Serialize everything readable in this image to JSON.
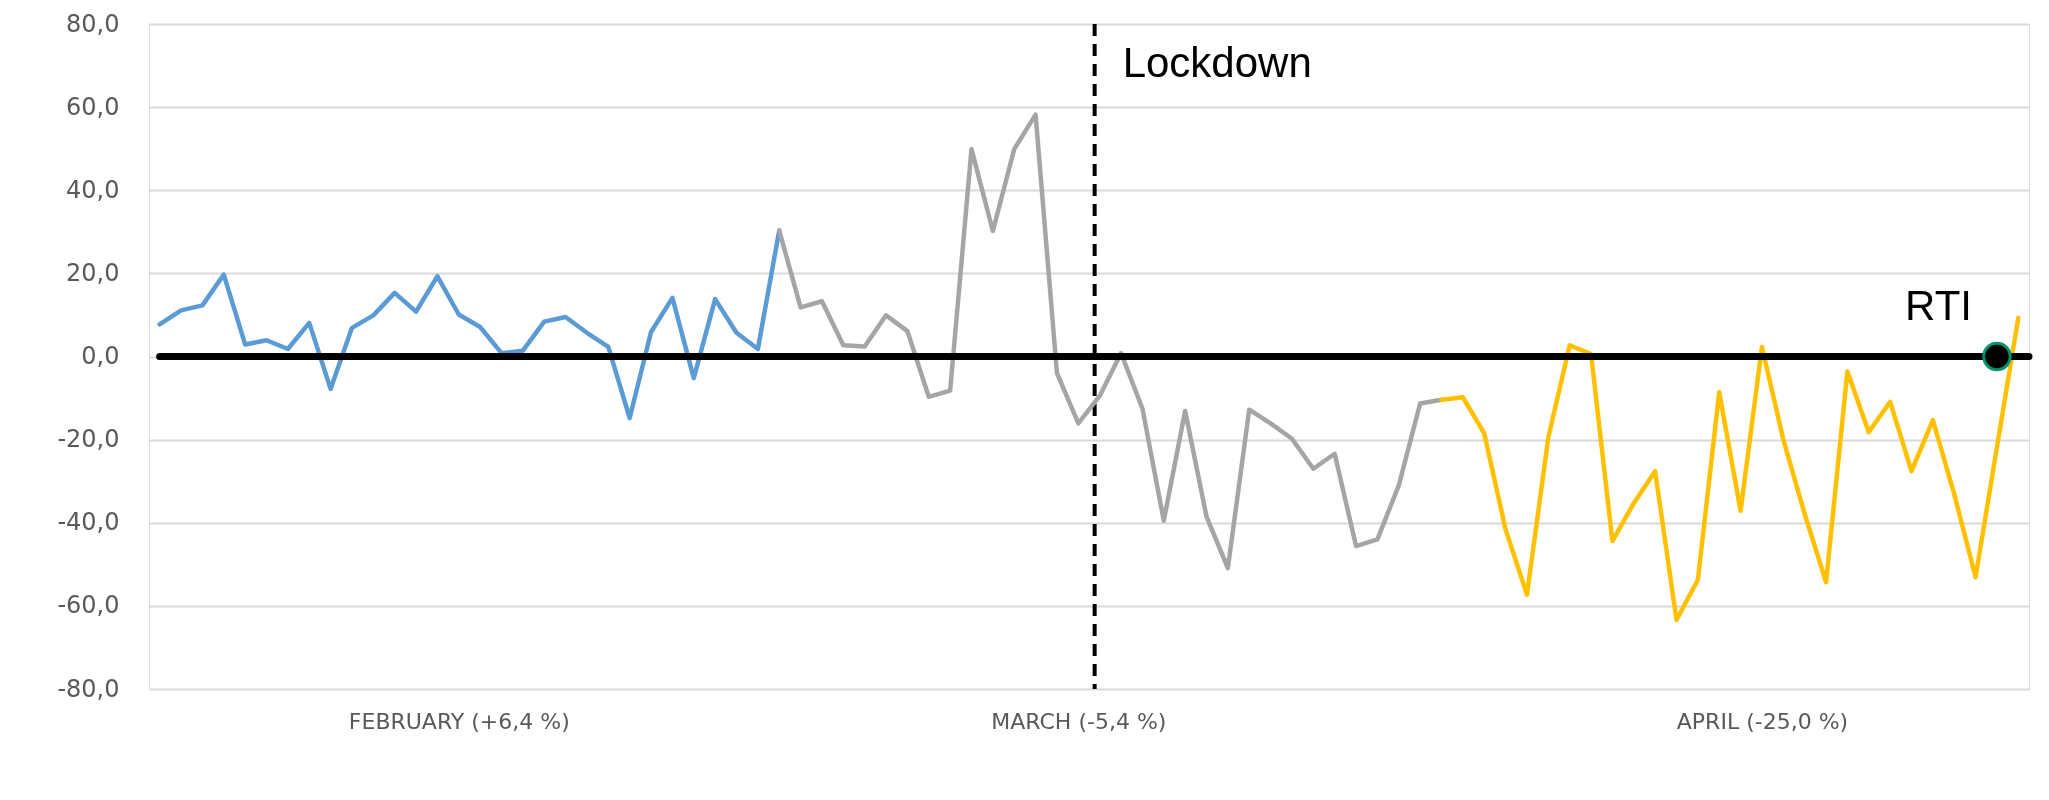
{
  "chart_data": {
    "type": "line",
    "categories": [
      null,
      null,
      null,
      null,
      null,
      null,
      null,
      null,
      null,
      null,
      null,
      null,
      null,
      null,
      "FEBRUARY (+6,4 %)",
      null,
      null,
      null,
      null,
      null,
      null,
      null,
      null,
      null,
      null,
      null,
      null,
      null,
      null,
      null,
      null,
      null,
      null,
      null,
      null,
      null,
      null,
      null,
      null,
      null,
      null,
      null,
      null,
      "MARCH (-5,4 %)",
      null,
      null,
      null,
      null,
      null,
      null,
      null,
      null,
      null,
      null,
      null,
      null,
      null,
      null,
      null,
      null,
      null,
      null,
      null,
      null,
      null,
      null,
      null,
      null,
      null,
      null,
      null,
      null,
      null,
      null,
      null,
      "APRIL (-25,0 %)",
      null,
      null,
      null,
      null,
      null,
      null,
      null,
      null,
      null,
      null,
      null,
      null
    ],
    "series": [
      {
        "color": "#5b9bd5",
        "values": [
          7.7,
          11.1,
          12.3,
          19.7,
          2.9,
          3.9,
          1.8,
          8.1,
          -7.8,
          6.9,
          9.9,
          15.3,
          10.8,
          19.3,
          10.1,
          7.1,
          0.8,
          1.4,
          8.4,
          9.5,
          5.7,
          2.3,
          -14.8,
          5.9,
          14.1,
          -5.2,
          13.8,
          5.7,
          1.8,
          30.3,
          null,
          null,
          null,
          null,
          null,
          null,
          null,
          null,
          null,
          null,
          null,
          null,
          null,
          null,
          null,
          null,
          null,
          null,
          null,
          null,
          null,
          null,
          null,
          null,
          null,
          null,
          null,
          null,
          null,
          null,
          null,
          null,
          null,
          null,
          null,
          null,
          null,
          null,
          null,
          null,
          null,
          null,
          null,
          null,
          null,
          null,
          null,
          null,
          null,
          null,
          null,
          null,
          null,
          null,
          null,
          null,
          null,
          null
        ]
      },
      {
        "color": "#a5a5a5",
        "values": [
          null,
          null,
          null,
          null,
          null,
          null,
          null,
          null,
          null,
          null,
          null,
          null,
          null,
          null,
          null,
          null,
          null,
          null,
          null,
          null,
          null,
          null,
          null,
          null,
          null,
          null,
          null,
          null,
          null,
          30.3,
          11.8,
          13.3,
          2.7,
          2.4,
          9.9,
          6.1,
          -9.7,
          -8.2,
          49.9,
          30.2,
          49.9,
          58.2,
          -4.0,
          -16.1,
          -9.5,
          0.8,
          -12.5,
          -39.5,
          -13.1,
          -38.5,
          -50.9,
          -12.8,
          -16.1,
          -19.8,
          -27.0,
          -23.4,
          -45.6,
          -44.0,
          -31.0,
          -11.3,
          -10.4,
          null,
          null,
          null,
          null,
          null,
          null,
          null,
          null,
          null,
          null,
          null,
          null,
          null,
          null,
          null,
          null,
          null,
          null,
          null,
          null,
          null,
          null,
          null,
          null,
          null,
          null,
          null
        ]
      },
      {
        "color": "#ffc000",
        "values": [
          null,
          null,
          null,
          null,
          null,
          null,
          null,
          null,
          null,
          null,
          null,
          null,
          null,
          null,
          null,
          null,
          null,
          null,
          null,
          null,
          null,
          null,
          null,
          null,
          null,
          null,
          null,
          null,
          null,
          null,
          null,
          null,
          null,
          null,
          null,
          null,
          null,
          null,
          null,
          null,
          null,
          null,
          null,
          null,
          null,
          null,
          null,
          null,
          null,
          null,
          null,
          null,
          null,
          null,
          null,
          null,
          null,
          null,
          null,
          null,
          -10.4,
          -9.8,
          -18.5,
          -41.6,
          -57.3,
          -19.5,
          2.7,
          0.6,
          -44.4,
          -35.3,
          -27.6,
          -63.4,
          -53.7,
          -8.6,
          -37.1,
          2.3,
          -20.0,
          -37.9,
          -54.3,
          -3.6,
          -18.2,
          -10.9,
          -27.6,
          -15.3,
          -33.1,
          -53.1,
          -21.8,
          9.3
        ]
      },
      {
        "type": "scatter",
        "color": "#000000",
        "marker": "circle",
        "values": [
          null,
          null,
          null,
          null,
          null,
          null,
          null,
          null,
          null,
          null,
          null,
          null,
          null,
          null,
          null,
          null,
          null,
          null,
          null,
          null,
          null,
          null,
          null,
          null,
          null,
          null,
          null,
          null,
          null,
          null,
          null,
          null,
          null,
          null,
          null,
          null,
          null,
          null,
          null,
          null,
          null,
          null,
          null,
          null,
          null,
          null,
          null,
          null,
          null,
          null,
          null,
          null,
          null,
          null,
          null,
          null,
          null,
          null,
          null,
          null,
          null,
          null,
          null,
          null,
          null,
          null,
          null,
          null,
          null,
          null,
          null,
          null,
          null,
          null,
          null,
          null,
          null,
          null,
          null,
          null,
          null,
          null,
          null,
          null,
          null,
          null,
          0,
          null
        ]
      }
    ],
    "ylim": [
      -80,
      80
    ],
    "yticks": [
      {
        "value": -80,
        "label": "-80,0"
      },
      {
        "value": -60,
        "label": "-60,0"
      },
      {
        "value": -40,
        "label": "-40,0"
      },
      {
        "value": -20,
        "label": "-20,0"
      },
      {
        "value": 0,
        "label": "0,0"
      },
      {
        "value": 20,
        "label": "20,0"
      },
      {
        "value": 40,
        "label": "40,0"
      },
      {
        "value": 60,
        "label": "60,0"
      },
      {
        "value": 80,
        "label": "80,0"
      }
    ],
    "grid": "y",
    "ref_lines": [
      {
        "axis": "y",
        "value": 0,
        "color": "#000000",
        "line_style": "solid"
      }
    ],
    "annotations": [
      "Lockdown",
      {
        "text": "RTI",
        "y": 0
      }
    ]
  }
}
